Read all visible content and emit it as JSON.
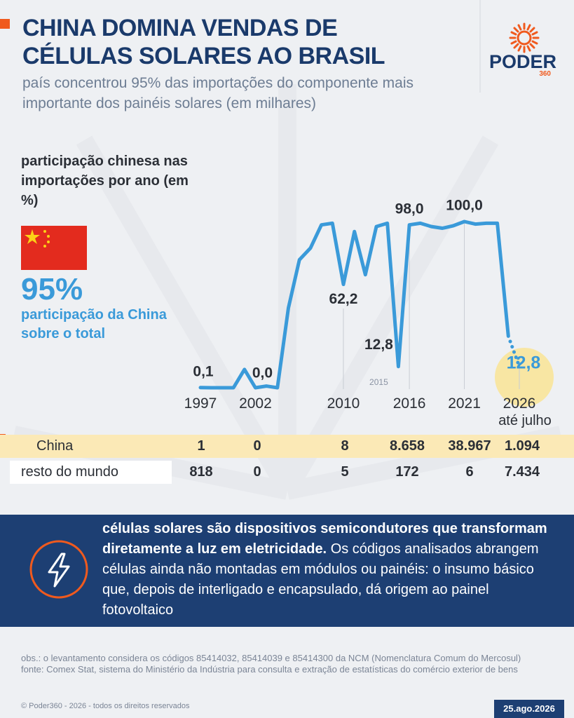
{
  "header": {
    "title": [
      "CHINA DOMINA VENDAS DE",
      "CÉLULAS SOLARES AO BRASIL"
    ],
    "subtitle": "país concentrou 95% das importações do componente mais importante dos painéis solares (em milhares)"
  },
  "logo": {
    "name": "PODER",
    "number": "360"
  },
  "sidebar": {
    "label": "participação chinesa nas importações por ano (em %)",
    "big_value": "95%",
    "caption": "participação da China sobre o total"
  },
  "chart_data": {
    "type": "line",
    "x": [
      1997,
      1998,
      1999,
      2000,
      2001,
      2002,
      2003,
      2004,
      2005,
      2006,
      2007,
      2008,
      2009,
      2010,
      2011,
      2012,
      2013,
      2014,
      2015,
      2016,
      2017,
      2018,
      2019,
      2020,
      2021,
      2022,
      2023,
      2024,
      2025,
      2026
    ],
    "series": [
      {
        "color": "#3a9ad9",
        "values": [
          0.1,
          0,
          0,
          0,
          11,
          0.0,
          1,
          0,
          48,
          77,
          84,
          98,
          99,
          62.2,
          94,
          68,
          97,
          99,
          12.8,
          98.0,
          99,
          97,
          96,
          97.5,
          100.0,
          98.5,
          99,
          99,
          31,
          12.8
        ],
        "value_labels": [
          "0,1",
          null,
          null,
          null,
          null,
          "0,0",
          null,
          null,
          null,
          null,
          null,
          null,
          null,
          "62,2",
          null,
          null,
          null,
          null,
          "12,8",
          "98,0",
          null,
          null,
          null,
          null,
          "100,0",
          null,
          null,
          null,
          null,
          "12,8"
        ]
      }
    ],
    "xlim": [
      1997,
      2026
    ],
    "xticks": [
      1997,
      2002,
      2010,
      2016,
      2021,
      2026
    ],
    "ylim": [
      0,
      100
    ],
    "annotations": [
      "2015",
      "até julho"
    ],
    "grid": true
  },
  "table": {
    "rows": [
      {
        "label": "China",
        "values": [
          "1",
          "0",
          "8",
          "8.658",
          "38.967",
          "1.094"
        ]
      },
      {
        "label": "resto do mundo",
        "values": [
          "818",
          "0",
          "5",
          "172",
          "6",
          "7.434"
        ]
      }
    ]
  },
  "info": {
    "bold": "células solares são dispositivos semicondutores que transformam diretamente a luz em eletricidade.",
    "text": "Os códigos analisados abrangem células ainda não montadas em módulos ou painéis: o insumo básico que, depois de interligado e encapsulado, dá origem ao painel fotovoltaico"
  },
  "notes": [
    "obs.: o levantamento considera os códigos 85414032, 85414039 e 85414300 da NCM (Nomenclatura Comum do Mercosul)",
    "fonte: Comex Stat, sistema do Ministério da Indústria para consulta e extração de estatísticas do comércio exterior de bens"
  ],
  "copyright": "© Poder360 - 2026 - todos os direitos reservados",
  "date": "25.ago.2026"
}
